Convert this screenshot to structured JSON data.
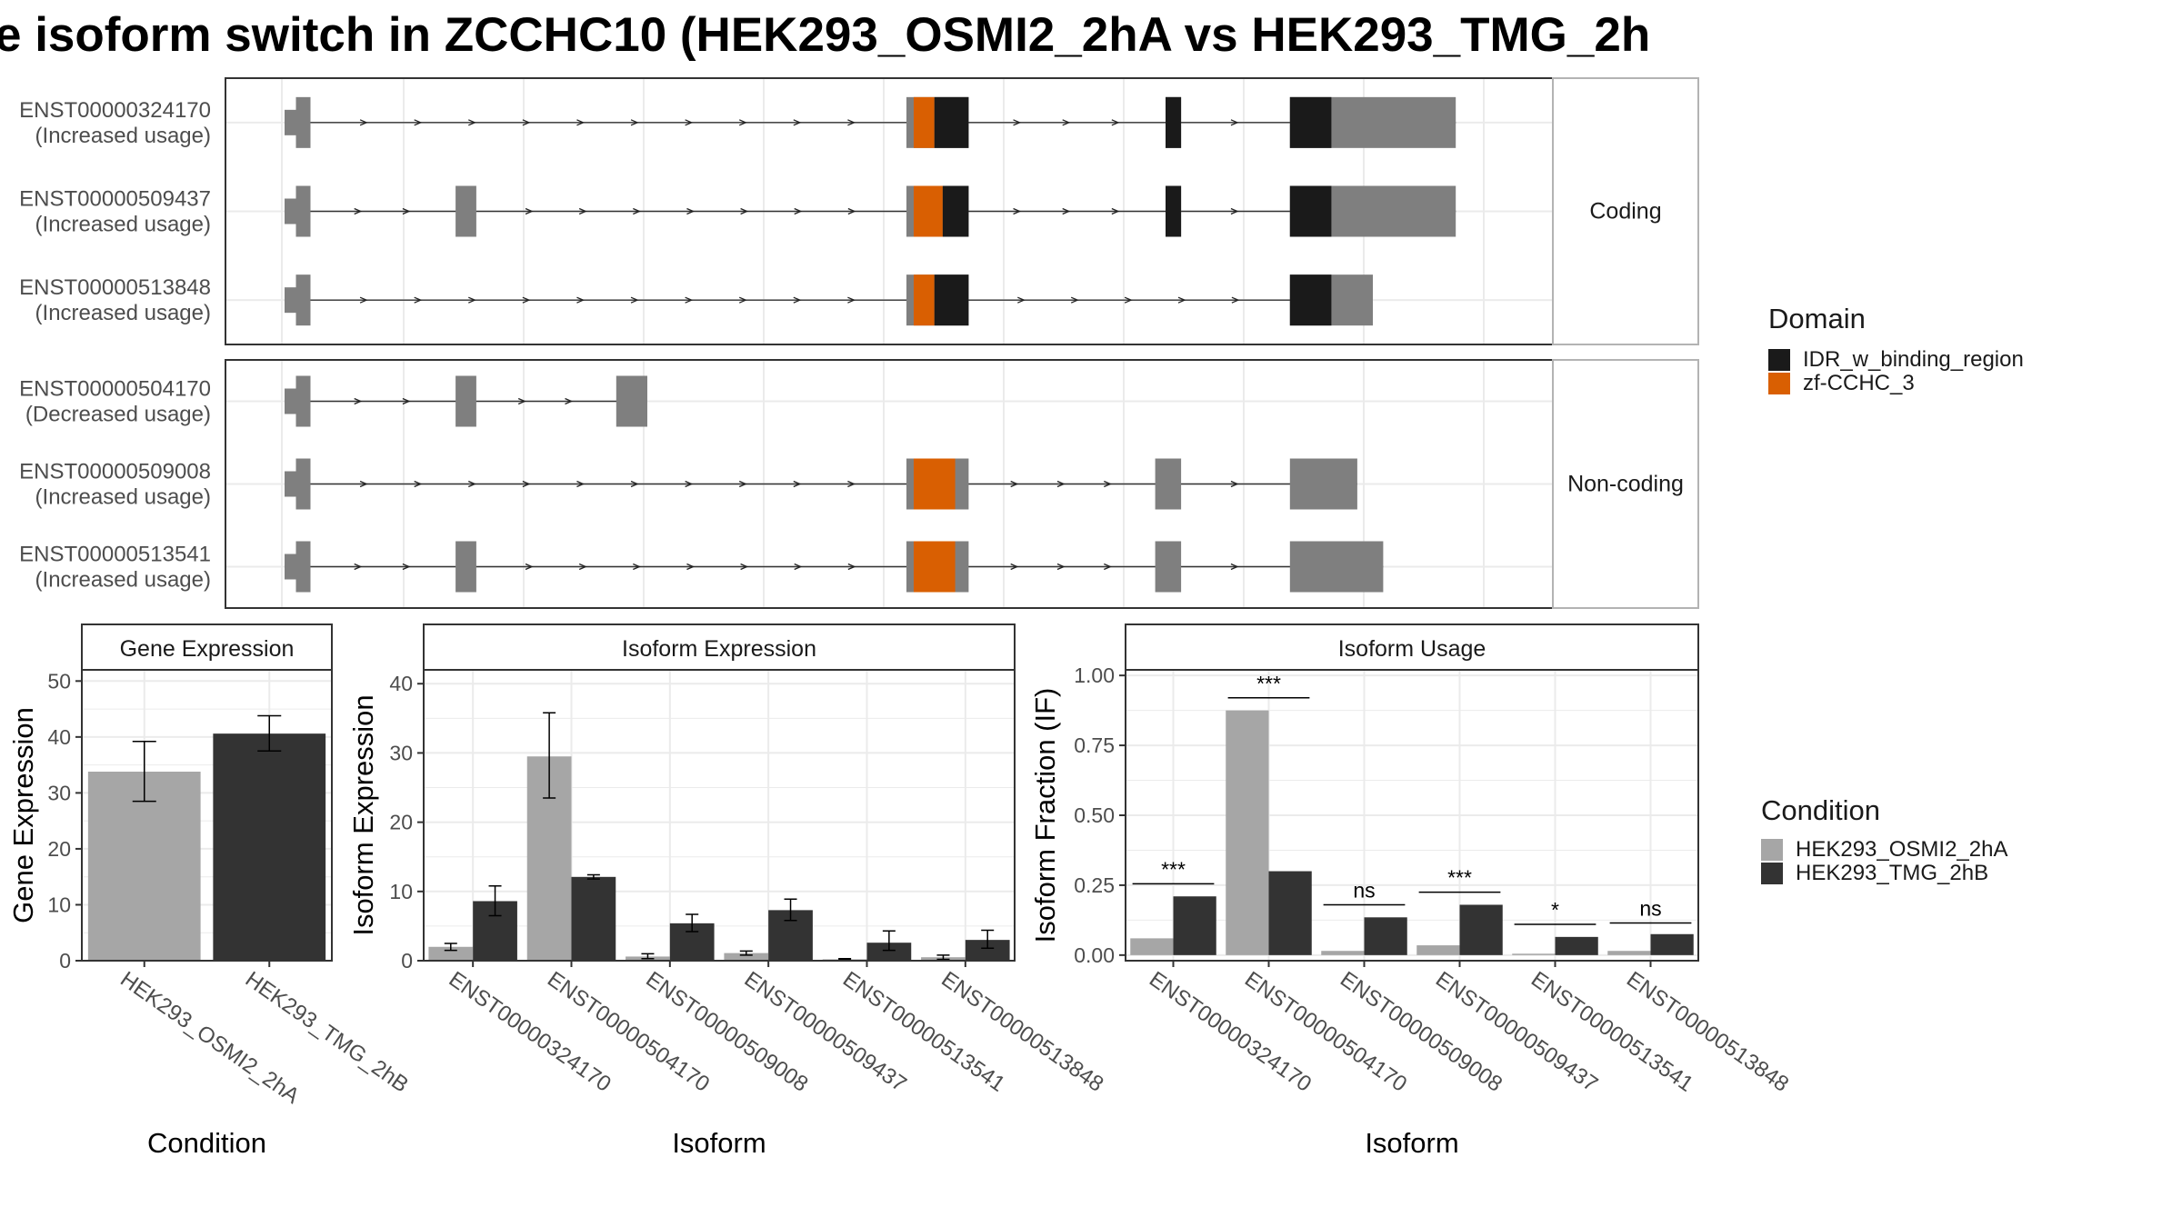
{
  "title": "e isoform switch in ZCCHC10 (HEK293_OSMI2_2hA vs HEK293_TMG_2h",
  "colors": {
    "osmi": "#a6a6a6",
    "tmg": "#333333",
    "idr": "#1a1a1a",
    "zf": "#d95f02",
    "exon": "#7f7f7f",
    "grid": "#ebebeb",
    "strip": "#ffffff"
  },
  "transcript_panel": {
    "legend": {
      "title": "Domain",
      "items": [
        {
          "label": "IDR_w_binding_region",
          "color": "#1a1a1a"
        },
        {
          "label": "zf-CCHC_3",
          "color": "#d95f02"
        }
      ]
    },
    "facets": [
      {
        "label": "Coding",
        "transcripts": [
          {
            "id": "ENST00000324170",
            "usage": "(Increased usage)",
            "exons": [
              [
                0.0,
                0.025
              ],
              [
                0.6,
                0.66
              ],
              [
                0.85,
                0.865
              ],
              [
                0.97,
                1.13
              ]
            ],
            "zf": [
              0.607,
              0.627
            ],
            "idr": [
              [
                0.627,
                0.66
              ],
              [
                0.85,
                0.865
              ],
              [
                0.97,
                1.01
              ]
            ]
          },
          {
            "id": "ENST00000509437",
            "usage": "(Increased usage)",
            "exons": [
              [
                0.0,
                0.025
              ],
              [
                0.165,
                0.185
              ],
              [
                0.6,
                0.66
              ],
              [
                0.85,
                0.865
              ],
              [
                0.97,
                1.13
              ]
            ],
            "zf": [
              0.607,
              0.635
            ],
            "idr": [
              [
                0.635,
                0.66
              ],
              [
                0.85,
                0.865
              ],
              [
                0.97,
                1.01
              ]
            ]
          },
          {
            "id": "ENST00000513848",
            "usage": "(Increased usage)",
            "exons": [
              [
                0.0,
                0.025
              ],
              [
                0.6,
                0.66
              ],
              [
                0.97,
                1.05
              ]
            ],
            "zf": [
              0.607,
              0.627
            ],
            "idr": [
              [
                0.627,
                0.66
              ],
              [
                0.97,
                1.01
              ]
            ]
          }
        ]
      },
      {
        "label": "Non-coding",
        "transcripts": [
          {
            "id": "ENST00000504170",
            "usage": "(Decreased usage)",
            "exons": [
              [
                0.0,
                0.025
              ],
              [
                0.165,
                0.185
              ],
              [
                0.32,
                0.35
              ]
            ],
            "zf": null,
            "idr": []
          },
          {
            "id": "ENST00000509008",
            "usage": "(Increased usage)",
            "exons": [
              [
                0.0,
                0.025
              ],
              [
                0.6,
                0.66
              ],
              [
                0.84,
                0.865
              ],
              [
                0.97,
                1.035
              ]
            ],
            "zf": [
              0.607,
              0.647
            ],
            "idr": []
          },
          {
            "id": "ENST00000513541",
            "usage": "(Increased usage)",
            "exons": [
              [
                0.0,
                0.025
              ],
              [
                0.165,
                0.185
              ],
              [
                0.6,
                0.66
              ],
              [
                0.84,
                0.865
              ],
              [
                0.97,
                1.06
              ]
            ],
            "zf": [
              0.607,
              0.647
            ],
            "idr": []
          }
        ]
      }
    ]
  },
  "chart_data": [
    {
      "type": "bar",
      "title": "Gene Expression",
      "xlabel": "Condition",
      "ylabel": "Gene Expression",
      "ylim": [
        0,
        52
      ],
      "yticks": [
        0,
        10,
        20,
        30,
        40,
        50
      ],
      "categories": [
        "HEK293_OSMI2_2hA",
        "HEK293_TMG_2hB"
      ],
      "values": [
        33.8,
        40.6
      ],
      "errors": [
        [
          28.5,
          39.2
        ],
        [
          37.5,
          43.8
        ]
      ]
    },
    {
      "type": "bar",
      "title": "Isoform Expression",
      "xlabel": "Isoform",
      "ylabel": "Isoform Expression",
      "ylim": [
        0,
        42
      ],
      "yticks": [
        0,
        10,
        20,
        30,
        40
      ],
      "categories": [
        "ENST00000324170",
        "ENST00000504170",
        "ENST00000509008",
        "ENST00000509437",
        "ENST00000513541",
        "ENST00000513848"
      ],
      "series": [
        {
          "name": "HEK293_OSMI2_2hA",
          "values": [
            2.0,
            29.5,
            0.6,
            1.1,
            0.2,
            0.5
          ],
          "errors": [
            [
              1.5,
              2.5
            ],
            [
              23.5,
              35.8
            ],
            [
              0.3,
              1.0
            ],
            [
              0.8,
              1.4
            ],
            [
              0.1,
              0.3
            ],
            [
              0.2,
              0.8
            ]
          ]
        },
        {
          "name": "HEK293_TMG_2hB",
          "values": [
            8.6,
            12.1,
            5.4,
            7.3,
            2.6,
            3.0
          ],
          "errors": [
            [
              6.5,
              10.8
            ],
            [
              11.8,
              12.4
            ],
            [
              4.2,
              6.7
            ],
            [
              5.8,
              8.9
            ],
            [
              1.5,
              4.3
            ],
            [
              1.8,
              4.4
            ]
          ]
        }
      ]
    },
    {
      "type": "bar",
      "title": "Isoform Usage",
      "xlabel": "Isoform",
      "ylabel": "Isoform Fraction (IF)",
      "ylim": [
        -0.02,
        1.02
      ],
      "yticks": [
        0.0,
        0.25,
        0.5,
        0.75,
        1.0
      ],
      "ytick_labels": [
        "0.00",
        "0.25",
        "0.50",
        "0.75",
        "1.00"
      ],
      "categories": [
        "ENST00000324170",
        "ENST00000504170",
        "ENST00000509008",
        "ENST00000509437",
        "ENST00000513541",
        "ENST00000513848"
      ],
      "series": [
        {
          "name": "HEK293_OSMI2_2hA",
          "values": [
            0.06,
            0.875,
            0.015,
            0.035,
            0.005,
            0.015
          ]
        },
        {
          "name": "HEK293_TMG_2hB",
          "values": [
            0.21,
            0.3,
            0.135,
            0.18,
            0.065,
            0.075
          ]
        }
      ],
      "significance": [
        {
          "label": "***",
          "y": 0.255
        },
        {
          "label": "***",
          "y": 0.92
        },
        {
          "label": "ns",
          "y": 0.18
        },
        {
          "label": "***",
          "y": 0.225
        },
        {
          "label": "*",
          "y": 0.11
        },
        {
          "label": "ns",
          "y": 0.115
        }
      ]
    }
  ],
  "condition_legend": {
    "title": "Condition",
    "items": [
      {
        "label": "HEK293_OSMI2_2hA",
        "color": "#a6a6a6"
      },
      {
        "label": "HEK293_TMG_2hB",
        "color": "#333333"
      }
    ]
  }
}
